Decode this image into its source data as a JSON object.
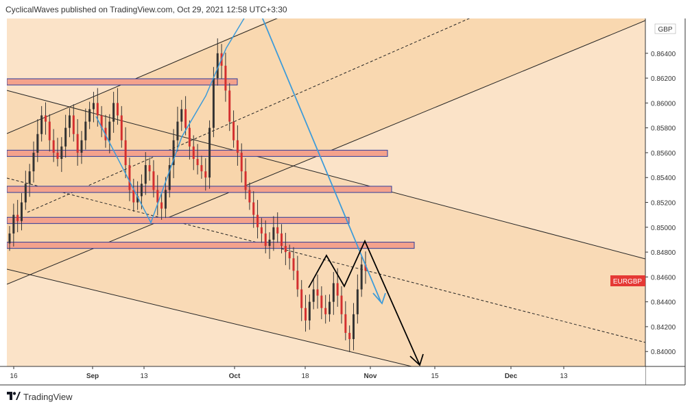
{
  "header": {
    "text": "CyclicalWaves published on TradingView.com, Oct 29, 2021 12:58 UTC+3:30"
  },
  "footer": {
    "brand": "TradingView"
  },
  "colors": {
    "background": "#fbe3c8",
    "band": "#f8d4a8",
    "candle": "#333333",
    "candle_down": "#d32f2f",
    "zone_fill": "#f4a28c",
    "zone_border": "#2b3a9b",
    "blue_path": "#3d9bd9",
    "black_path": "#000000",
    "symbol_badge": "#e53935"
  },
  "chart_data": {
    "type": "candlestick",
    "symbol_label": "EURGBP",
    "currency_label": "GBP",
    "ylim": [
      0.8388,
      0.8668
    ],
    "y_ticks": [
      "0.84000",
      "0.84200",
      "0.84400",
      "0.84600",
      "0.84800",
      "0.85000",
      "0.85200",
      "0.85400",
      "0.85600",
      "0.85800",
      "0.86000",
      "0.86200",
      "0.86400"
    ],
    "x_ticks": [
      "16",
      "Sep",
      "13",
      "Oct",
      "18",
      "Nov",
      "15",
      "Dec",
      "13"
    ],
    "x_tick_bold": [
      "Sep",
      "Oct",
      "Nov",
      "Dec"
    ],
    "closes": [
      0.8495,
      0.851,
      0.8505,
      0.852,
      0.8535,
      0.8545,
      0.856,
      0.8575,
      0.859,
      0.8585,
      0.857,
      0.856,
      0.8555,
      0.8565,
      0.858,
      0.859,
      0.8575,
      0.856,
      0.857,
      0.8585,
      0.8595,
      0.86,
      0.859,
      0.858,
      0.857,
      0.8585,
      0.86,
      0.859,
      0.857,
      0.855,
      0.853,
      0.852,
      0.8525,
      0.8535,
      0.855,
      0.8545,
      0.853,
      0.852,
      0.8515,
      0.853,
      0.855,
      0.857,
      0.8585,
      0.8595,
      0.858,
      0.8565,
      0.8555,
      0.855,
      0.8545,
      0.854,
      0.858,
      0.862,
      0.864,
      0.863,
      0.861,
      0.8585,
      0.857,
      0.856,
      0.8545,
      0.853,
      0.852,
      0.851,
      0.85,
      0.8495,
      0.8485,
      0.849,
      0.85,
      0.8495,
      0.8485,
      0.848,
      0.8475,
      0.8465,
      0.845,
      0.8435,
      0.8425,
      0.844,
      0.845,
      0.8445,
      0.8435,
      0.843,
      0.844,
      0.8455,
      0.8445,
      0.843,
      0.8415,
      0.841,
      0.843,
      0.845,
      0.847,
      0.8465
    ],
    "price_zones": [
      {
        "top": 0.86195,
        "bottom": 0.86145,
        "end_date": "Oct 01"
      },
      {
        "top": 0.8562,
        "bottom": 0.8557,
        "end_date": "Oct 28"
      },
      {
        "top": 0.8533,
        "bottom": 0.8528,
        "end_date": "Oct 30"
      },
      {
        "top": 0.8508,
        "bottom": 0.8503,
        "end_date": "Oct 27"
      },
      {
        "top": 0.8488,
        "bottom": 0.8483,
        "end_date": "Nov 02"
      }
    ],
    "grid": false
  }
}
